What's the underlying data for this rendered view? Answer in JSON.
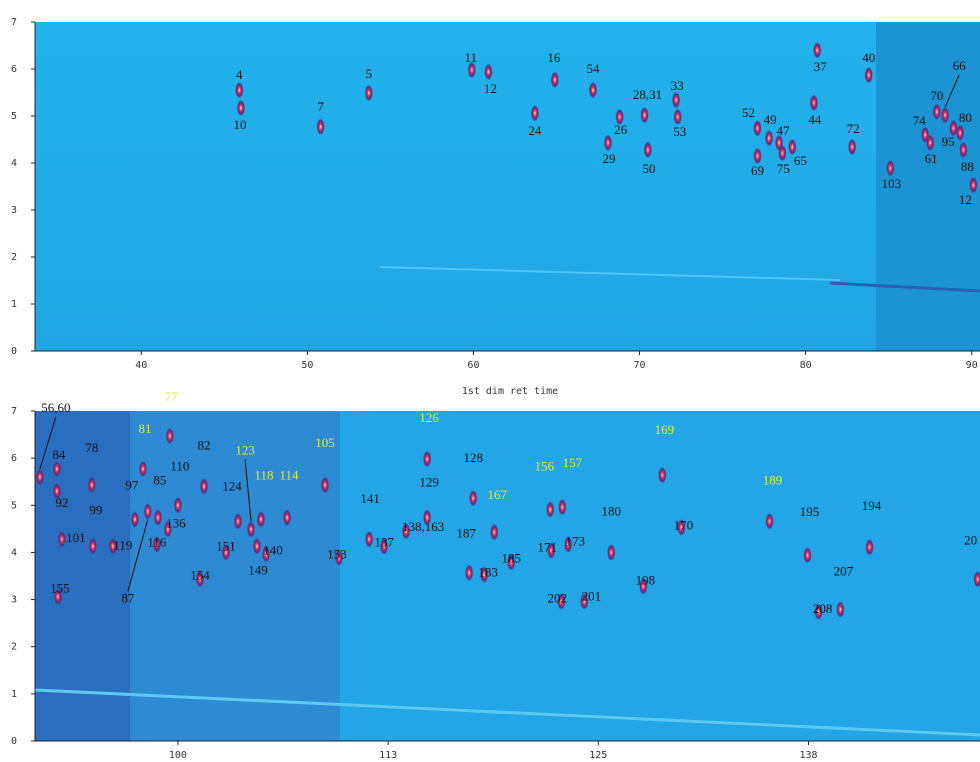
{
  "chart_data": [
    {
      "type": "scatter",
      "xlabel": "1st dim ret time",
      "xlim": [
        33.6,
        90.5
      ],
      "ylim": [
        0,
        7
      ],
      "xticks": [
        40,
        50,
        60,
        70,
        80,
        90
      ],
      "yticks": [
        0,
        1,
        2,
        3,
        4,
        5,
        6,
        7
      ],
      "series": [
        {
          "color": "#111111",
          "labels": [
            "4",
            "10",
            "7",
            "5",
            "11",
            "12",
            "16",
            "24",
            "54",
            "26",
            "29",
            "28,31",
            "50",
            "33",
            "53",
            "52",
            "49",
            "69",
            "47",
            "75",
            "65",
            "37",
            "44",
            "40",
            "72",
            "103",
            "74",
            "61",
            "70",
            "66",
            "80",
            "95",
            "88",
            "12"
          ],
          "x": [
            45.9,
            46.0,
            50.8,
            53.7,
            59.9,
            60.9,
            64.9,
            63.7,
            67.2,
            68.8,
            68.1,
            70.3,
            70.5,
            72.2,
            72.3,
            77.1,
            77.8,
            77.1,
            78.4,
            78.6,
            79.2,
            80.7,
            80.5,
            83.8,
            82.8,
            85.1,
            87.2,
            87.5,
            87.9,
            88.4,
            88.9,
            89.3,
            89.5,
            90.1
          ],
          "y": [
            5.55,
            5.17,
            4.77,
            5.49,
            5.98,
            5.94,
            5.77,
            5.06,
            5.55,
            4.98,
            4.43,
            5.02,
            4.28,
            5.34,
            4.98,
            4.74,
            4.53,
            4.15,
            4.43,
            4.21,
            4.34,
            6.4,
            5.28,
            5.87,
            4.34,
            3.89,
            4.6,
            4.43,
            5.09,
            5.02,
            4.74,
            4.64,
            4.28,
            3.53
          ]
        }
      ]
    },
    {
      "type": "scatter",
      "xlim": [
        91.5,
        147.7
      ],
      "ylim": [
        0,
        7
      ],
      "xticks": [
        100,
        {
          "value": 112.5,
          "label": "113"
        },
        125,
        {
          "value": 137.5,
          "label": "138"
        }
      ],
      "yticks": [
        0,
        1,
        2,
        3,
        4,
        5,
        6,
        7
      ],
      "series": [
        {
          "color": "#111111",
          "labels": [
            "56,60",
            "84",
            "92",
            "101",
            "78",
            "99",
            "119",
            "155",
            "97",
            "85",
            "110",
            "82",
            "136",
            "116",
            "87",
            "124",
            "151",
            "149",
            "140",
            "154",
            "153",
            "141",
            "137",
            "138,163",
            "129",
            "128",
            "187",
            "183",
            "185",
            "171",
            "173",
            "202",
            "201",
            "180",
            "198",
            "170",
            "195",
            "194",
            "207",
            "208",
            "20"
          ],
          "x": [
            91.79,
            92.8,
            92.8,
            93.1,
            94.88,
            94.94,
            96.13,
            92.86,
            97.44,
            98.81,
            100.0,
            101.55,
            99.4,
            98.75,
            98.21,
            103.57,
            102.86,
            104.7,
            105.24,
            101.31,
            109.58,
            111.37,
            112.26,
            113.57,
            114.82,
            117.56,
            117.32,
            118.21,
            119.82,
            122.2,
            123.21,
            122.8,
            124.17,
            125.77,
            127.68,
            129.94,
            137.44,
            141.13,
            139.4,
            138.1,
            147.56
          ],
          "y": [
            5.6,
            5.77,
            5.3,
            4.28,
            5.43,
            4.13,
            4.13,
            3.06,
            4.7,
            4.74,
            5.0,
            5.4,
            4.49,
            4.17,
            4.87,
            4.66,
            4.0,
            4.13,
            3.96,
            3.43,
            3.89,
            4.28,
            4.13,
            4.45,
            4.74,
            5.15,
            3.57,
            3.53,
            3.79,
            4.04,
            4.17,
            2.96,
            2.96,
            4.0,
            3.28,
            4.53,
            3.94,
            4.11,
            2.79,
            2.74,
            3.43
          ]
        },
        {
          "color": "#e4ee3a",
          "labels": [
            "81",
            "77",
            "123",
            "118",
            "114",
            "105",
            "126",
            "167",
            "156",
            "157",
            "169",
            "189"
          ],
          "x": [
            97.92,
            99.52,
            104.35,
            104.94,
            106.49,
            108.75,
            114.82,
            118.81,
            122.14,
            122.86,
            128.81,
            135.18
          ],
          "y": [
            5.77,
            6.47,
            4.49,
            4.7,
            4.74,
            5.43,
            5.98,
            4.43,
            4.91,
            4.96,
            5.64,
            4.66
          ]
        }
      ]
    }
  ]
}
